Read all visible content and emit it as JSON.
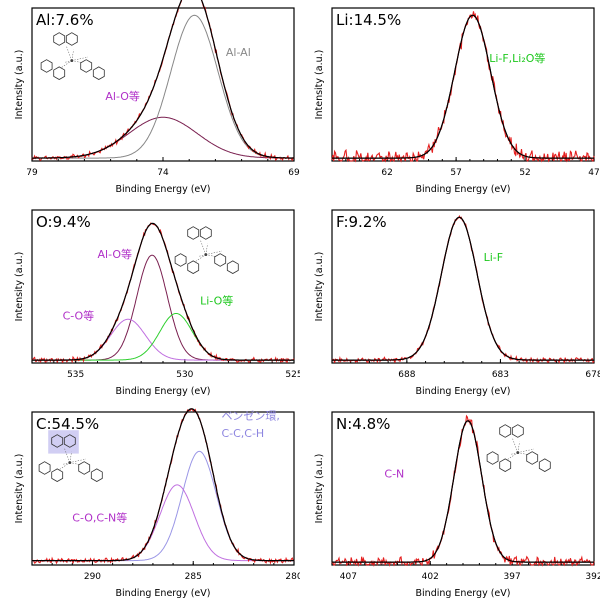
{
  "axis_xlabel": "Binding Energy (eV)",
  "axis_ylabel": "Intensity (a.u.)",
  "colors": {
    "measured": "#e41e1e",
    "fit": "#000000",
    "metal": "#888888",
    "purple": "#b030c8",
    "green": "#1ec81e",
    "lavender": "#8e86e0",
    "comp_dark": "#7a2050",
    "comp_purple": "#c070e0",
    "comp_green": "#30d030",
    "comp_lav": "#9a96e6"
  },
  "chart_data": [
    {
      "type": "line",
      "element": "Al",
      "title": "Al:7.6%",
      "xlim": [
        79,
        69
      ],
      "xticks": [
        79,
        74,
        69
      ],
      "xlabel": "Binding Energy (eV)",
      "ylabel": "Intensity (a.u.)",
      "ylim": [
        0,
        1.05
      ],
      "has_molecule": true,
      "components": [
        {
          "center": 74.0,
          "height": 0.28,
          "width": 1.3,
          "color_key": "comp_dark"
        },
        {
          "center": 72.8,
          "height": 0.98,
          "width": 0.9,
          "color_key": "metal"
        }
      ],
      "noise": 0.012,
      "baseline": 0.02,
      "annotations": [
        {
          "text": "Al-Al",
          "x": 71.6,
          "y": 0.72,
          "color_key": "metal"
        },
        {
          "text": "Al-O等",
          "x": 76.2,
          "y": 0.42,
          "color_key": "purple"
        }
      ]
    },
    {
      "type": "line",
      "element": "Li",
      "title": "Li:14.5%",
      "xlim": [
        66,
        47
      ],
      "xticks": [
        62,
        57,
        52,
        47
      ],
      "xlabel": "Binding Energy (eV)",
      "ylabel": "Intensity (a.u.)",
      "ylim": [
        0,
        1.05
      ],
      "has_molecule": false,
      "components": [
        {
          "center": 55.8,
          "height": 0.98,
          "width": 1.3,
          "color_key": "fit"
        }
      ],
      "noise": 0.035,
      "baseline": 0.02,
      "annotations": [
        {
          "text": "Li-F,Li₂O等",
          "x": 54.6,
          "y": 0.68,
          "color_key": "green"
        }
      ]
    },
    {
      "type": "line",
      "element": "O",
      "title": "O:9.4%",
      "xlim": [
        537,
        525
      ],
      "xticks": [
        535,
        530,
        525
      ],
      "xlabel": "Binding Energy (eV)",
      "ylabel": "Intensity (a.u.)",
      "ylim": [
        0,
        1.05
      ],
      "has_molecule": true,
      "components": [
        {
          "center": 531.5,
          "height": 0.72,
          "width": 0.7,
          "color_key": "comp_dark"
        },
        {
          "center": 532.6,
          "height": 0.28,
          "width": 0.8,
          "color_key": "comp_purple"
        },
        {
          "center": 530.4,
          "height": 0.32,
          "width": 0.75,
          "color_key": "comp_green"
        }
      ],
      "noise": 0.012,
      "baseline": 0.02,
      "annotations": [
        {
          "text": "Al-O等",
          "x": 534.0,
          "y": 0.72,
          "color_key": "purple"
        },
        {
          "text": "C-O等",
          "x": 535.6,
          "y": 0.3,
          "color_key": "purple"
        },
        {
          "text": "Li-O等",
          "x": 529.3,
          "y": 0.4,
          "color_key": "green"
        }
      ]
    },
    {
      "type": "line",
      "element": "F",
      "title": "F:9.2%",
      "xlim": [
        692,
        678
      ],
      "xticks": [
        688,
        683,
        678
      ],
      "xlabel": "Binding Energy (eV)",
      "ylabel": "Intensity (a.u.)",
      "ylim": [
        0,
        1.05
      ],
      "has_molecule": false,
      "components": [
        {
          "center": 685.2,
          "height": 0.98,
          "width": 0.95,
          "color_key": "fit"
        }
      ],
      "noise": 0.012,
      "baseline": 0.02,
      "annotations": [
        {
          "text": "Li-F",
          "x": 683.9,
          "y": 0.7,
          "color_key": "green"
        }
      ]
    },
    {
      "type": "line",
      "element": "C",
      "title": "C:54.5%",
      "xlim": [
        293,
        280
      ],
      "xticks": [
        290,
        285,
        280
      ],
      "xlabel": "Binding Energy (eV)",
      "ylabel": "Intensity (a.u.)",
      "ylim": [
        0,
        1.05
      ],
      "has_molecule": true,
      "components": [
        {
          "center": 284.7,
          "height": 0.75,
          "width": 0.85,
          "color_key": "comp_lav"
        },
        {
          "center": 285.8,
          "height": 0.52,
          "width": 0.85,
          "color_key": "comp_purple"
        }
      ],
      "noise": 0.012,
      "baseline": 0.03,
      "annotations": [
        {
          "text": "ベンゼン環,",
          "x": 283.6,
          "y": 1.0,
          "color_key": "lavender"
        },
        {
          "text": "C-C,C-H",
          "x": 283.6,
          "y": 0.88,
          "color_key": "lavender"
        },
        {
          "text": "C-O,C-N等",
          "x": 291.0,
          "y": 0.3,
          "color_key": "purple"
        }
      ]
    },
    {
      "type": "line",
      "element": "N",
      "title": "N:4.8%",
      "xlim": [
        408,
        392
      ],
      "xticks": [
        407,
        402,
        397,
        392
      ],
      "xlabel": "Binding Energy (eV)",
      "ylabel": "Intensity (a.u.)",
      "ylim": [
        0,
        1.05
      ],
      "has_molecule": true,
      "components": [
        {
          "center": 399.7,
          "height": 0.97,
          "width": 0.85,
          "color_key": "fit"
        }
      ],
      "noise": 0.025,
      "baseline": 0.02,
      "annotations": [
        {
          "text": "C-N",
          "x": 404.8,
          "y": 0.6,
          "color_key": "purple"
        }
      ]
    }
  ]
}
